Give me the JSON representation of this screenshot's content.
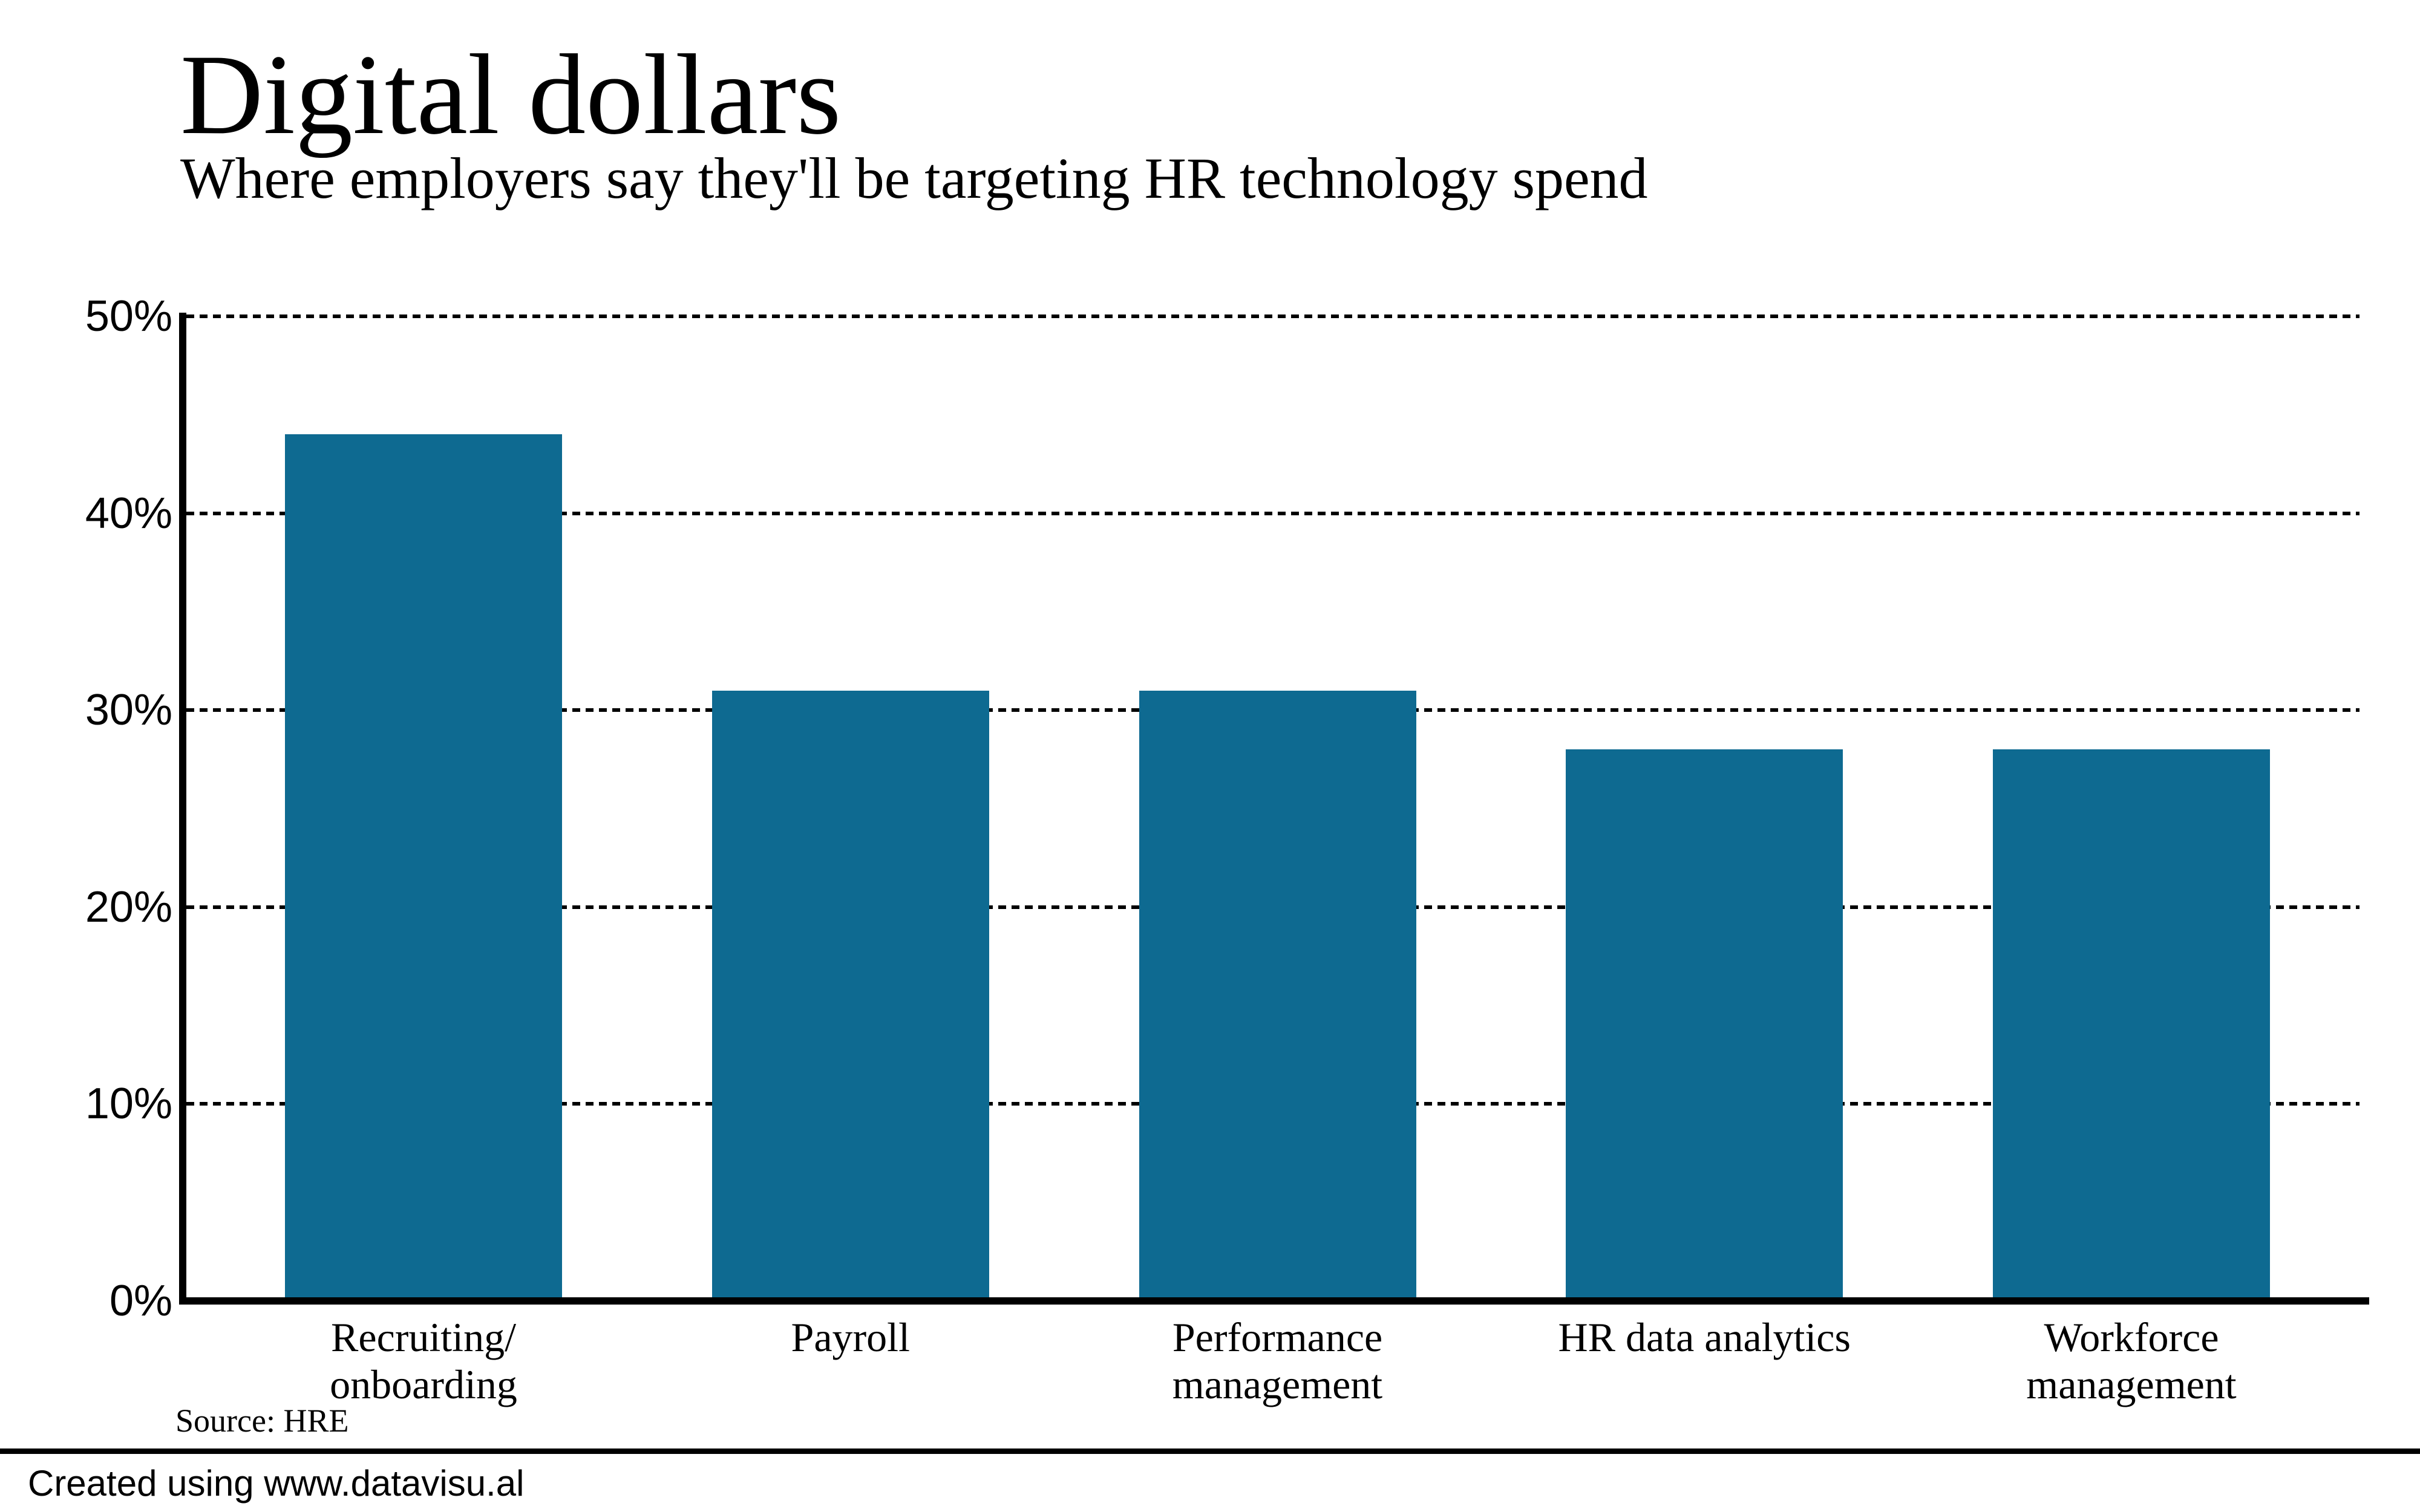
{
  "header": {
    "title": "Digital dollars",
    "subtitle": "Where employers say they'll be targeting HR technology spend"
  },
  "chart_data": {
    "type": "bar",
    "title": "Digital dollars",
    "subtitle": "Where employers say they'll be targeting HR technology spend",
    "categories": [
      "Recruiting/\nonboarding",
      "Payroll",
      "Performance\nmanagement",
      "HR data analytics",
      "Workforce\nmanagement"
    ],
    "values": [
      44,
      31,
      31,
      28,
      28
    ],
    "unit": "%",
    "xlabel": "",
    "ylabel": "",
    "ylim": [
      0,
      50
    ],
    "ytick_step": 10,
    "ytick_labels": [
      "0%",
      "10%",
      "20%",
      "30%",
      "40%",
      "50%"
    ],
    "grid": "horizontal-dotted",
    "legend": "none",
    "bar_color": "#0e6a91",
    "axis_color": "#000000",
    "gridline_color": "#000000"
  },
  "source": {
    "label": "Source: HRE"
  },
  "footer": {
    "credit": "Created using www.datavisu.al"
  }
}
